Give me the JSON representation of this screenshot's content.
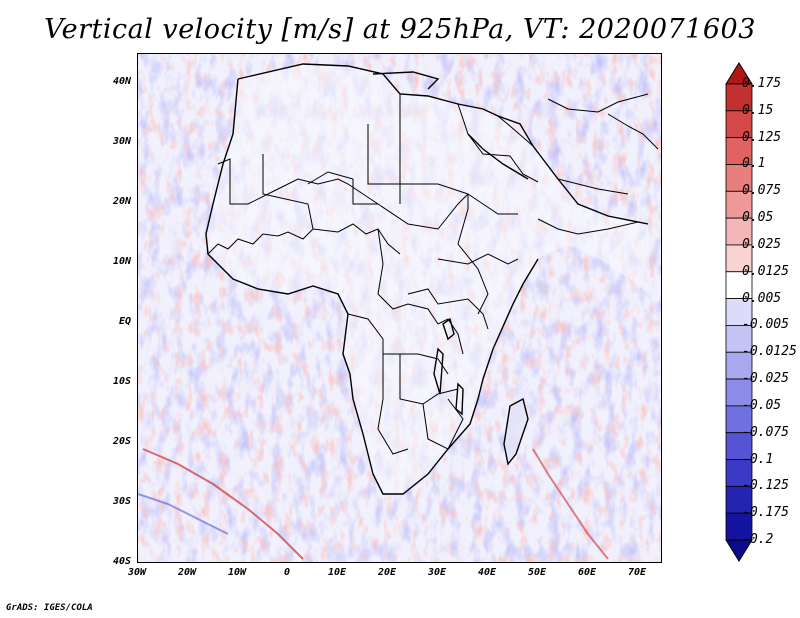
{
  "title": "Vertical velocity [m/s] at 925hPa, VT: 2020071603",
  "credit": "GrADS: IGES/COLA",
  "map": {
    "region": "Africa",
    "lon_range": [
      -30,
      75
    ],
    "lat_range": [
      -40,
      45
    ],
    "lat_labels": [
      "40N",
      "30N",
      "20N",
      "10N",
      "EQ",
      "10S",
      "20S",
      "30S",
      "40S"
    ],
    "lat_values": [
      40,
      30,
      20,
      10,
      0,
      -10,
      -20,
      -30,
      -40
    ],
    "lon_labels": [
      "30W",
      "20W",
      "10W",
      "0",
      "10E",
      "20E",
      "30E",
      "40E",
      "50E",
      "60E",
      "70E"
    ],
    "lon_values": [
      -30,
      -20,
      -10,
      0,
      10,
      20,
      30,
      40,
      50,
      60,
      70
    ]
  },
  "colorbar": {
    "labels": [
      "0.175",
      "0.15",
      "0.125",
      "0.1",
      "0.075",
      "0.05",
      "0.025",
      "0.0125",
      "0.005",
      "-0.005",
      "-0.0125",
      "-0.025",
      "-0.05",
      "-0.075",
      "-0.1",
      "-0.125",
      "-0.175",
      "-0.2"
    ],
    "colors": [
      "#b01818",
      "#c23030",
      "#d44a4a",
      "#e06262",
      "#e87e7e",
      "#ef9999",
      "#f4b6b6",
      "#f9d2d2",
      "#ffffff",
      "#dcdcfa",
      "#c4c4f4",
      "#a8a8ee",
      "#8c8ce8",
      "#7070e0",
      "#5454d4",
      "#3a3ac6",
      "#2424b2",
      "#1414a0",
      "#0a0a8c"
    ]
  }
}
